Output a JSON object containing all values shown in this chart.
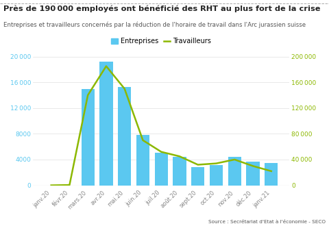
{
  "title": "Près de 190 000 employés ont bénéficié des RHT au plus fort de la crise",
  "subtitle": "Entreprises et travailleurs concernés par la réduction de l'horaire de travail dans l'Arc jurassien suisse",
  "source": "Source : Secrétariat d'Etat à l'économie - SECO",
  "categories": [
    "janv.20",
    "févr.20",
    "mars.20",
    "avr.20",
    "mai.20",
    "juin.20",
    "juil.20",
    "août.20",
    "sept.20",
    "oct.20",
    "nov.20",
    "déc.20",
    "janv.21"
  ],
  "bar_values": [
    0,
    0,
    15000,
    19200,
    15300,
    7800,
    5100,
    4400,
    2800,
    3100,
    4400,
    3700,
    3500
  ],
  "line_values": [
    0,
    500,
    140000,
    185000,
    150000,
    70000,
    52000,
    45000,
    32000,
    34000,
    40000,
    30000,
    22000
  ],
  "bar_color": "#5BC8F0",
  "line_color": "#8CB800",
  "left_ylim": [
    0,
    20000
  ],
  "right_ylim": [
    0,
    200000
  ],
  "left_yticks": [
    0,
    4000,
    8000,
    12000,
    16000,
    20000
  ],
  "right_yticks": [
    0,
    40000,
    80000,
    120000,
    160000,
    200000
  ],
  "left_ytick_labels": [
    "0",
    "4000",
    "8000",
    "12 000",
    "16 000",
    "20 000"
  ],
  "right_ytick_labels": [
    "0",
    "40 000",
    "80 000",
    "120 000",
    "160 000",
    "200 000"
  ],
  "title_color": "#222222",
  "subtitle_color": "#555555",
  "tick_color": "#888888",
  "background_color": "#ffffff",
  "legend_entreprises": "Entreprises",
  "legend_travailleurs": "Travailleurs",
  "left_yaxis_color": "#5BC8F0",
  "right_yaxis_color": "#8CB800",
  "grid_color": "#e0e0e0",
  "dashed_top_color": "#aaaaaa"
}
